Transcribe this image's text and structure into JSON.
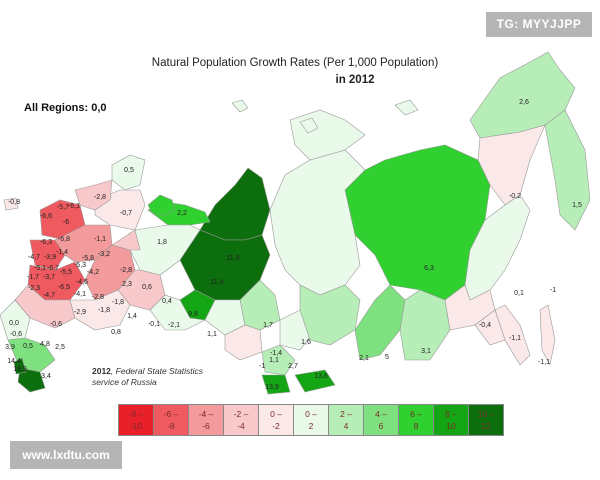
{
  "title_line1": "Natural Population Growth Rates (Per 1,000 Population)",
  "title_line2": "in 2012",
  "all_regions": "All Regions: 0,0",
  "tag": "TG: MYYJJPP",
  "watermark": "www.lxdtu.com",
  "source_year": "2012",
  "source_text1": ", Federal State Statistics",
  "source_text2": "service of Russia",
  "colors": {
    "c1": "#e8202a",
    "c2": "#ee5a5f",
    "c3": "#f29a9c",
    "c4": "#f8c9ca",
    "c5": "#fbe9e9",
    "c6": "#eafaea",
    "c7": "#b7edb7",
    "c8": "#7fe07f",
    "c9": "#2fd02f",
    "c10": "#13a513",
    "c11": "#0d6e0d"
  },
  "legend": [
    {
      "line1": "-8 –",
      "line2": "-10"
    },
    {
      "line1": "-6 –",
      "line2": "-8"
    },
    {
      "line1": "-4 –",
      "line2": "-6"
    },
    {
      "line1": "-2 –",
      "line2": "-4"
    },
    {
      "line1": "0 –",
      "line2": "-2"
    },
    {
      "line1": "0 –",
      "line2": "2"
    },
    {
      "line1": "2 –",
      "line2": "4"
    },
    {
      "line1": "4 –",
      "line2": "6"
    },
    {
      "line1": "6 –",
      "line2": "8"
    },
    {
      "line1": "8 –",
      "line2": "10"
    },
    {
      "line1": "10 –",
      "line2": "12"
    }
  ],
  "region_values": [
    "2,6",
    "0,5",
    "-2,8",
    "-0,7",
    "2,2",
    "-0,8",
    "-5,7",
    "-6,1",
    "-6,6",
    "-6",
    "-6,3",
    "-6,8",
    "-1,1",
    "-4,7",
    "-3,9",
    "-1,4",
    "-5,1",
    "-6,7",
    "-5,5",
    "-5,3",
    "-5,8",
    "-3,2",
    "-1,7",
    "-3,7",
    "-4,6",
    "-4,2",
    "-2,3",
    "-4,7",
    "-6,5",
    "-4,1",
    "-2,8",
    "2,3",
    "-2,8",
    "0,6",
    "-1,8",
    "-2,9",
    "-1,8",
    "0,8",
    "1,4",
    "-0,1",
    "-2,1",
    "9,8",
    "0,4",
    "1,1",
    "1,8",
    "11,9",
    "11,4",
    "1,7",
    "-1,4",
    "2,7",
    "1,6",
    "1,1",
    "-1",
    "13,9",
    "13,6",
    "2,1",
    "5",
    "3,1",
    "6,3",
    "-0,2",
    "1,5",
    "0,1",
    "-1",
    "-0,4",
    "-1,1",
    "-1,1",
    "0,0",
    "-0,6",
    "3,9",
    "0,5",
    "2,5",
    "4,8",
    "14,4",
    "18,9",
    "3,4",
    "-0,6"
  ]
}
